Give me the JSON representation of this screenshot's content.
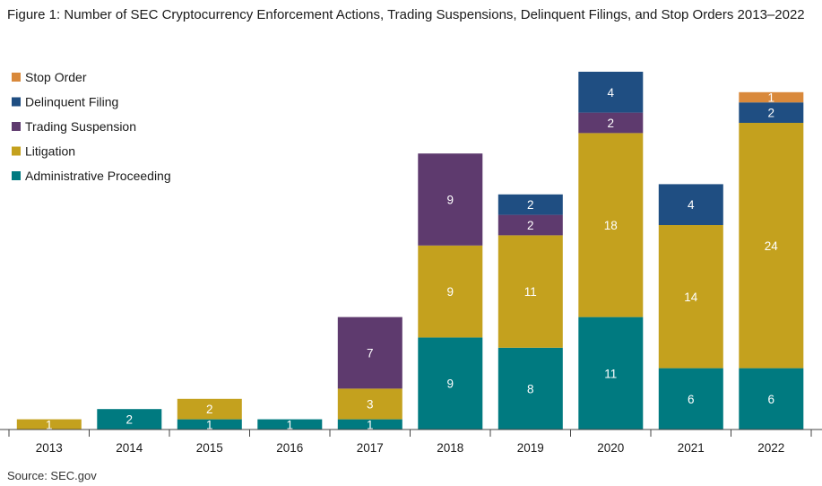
{
  "title": "Figure 1: Number of SEC Cryptocurrency Enforcement Actions, Trading Suspensions, Delinquent Filings, and Stop Orders 2013–2022",
  "source": "Source: SEC.gov",
  "chart_data": {
    "type": "bar",
    "stacked": true,
    "categories": [
      "2013",
      "2014",
      "2015",
      "2016",
      "2017",
      "2018",
      "2019",
      "2020",
      "2021",
      "2022"
    ],
    "series": [
      {
        "name": "Administrative Proceeding",
        "color": "#007a80",
        "values": [
          0,
          2,
          1,
          1,
          1,
          9,
          8,
          11,
          6,
          6
        ]
      },
      {
        "name": "Litigation",
        "color": "#c4a11e",
        "values": [
          1,
          0,
          2,
          0,
          3,
          9,
          11,
          18,
          14,
          24
        ]
      },
      {
        "name": "Trading Suspension",
        "color": "#5e3a6e",
        "values": [
          0,
          0,
          0,
          0,
          7,
          9,
          2,
          2,
          0,
          0
        ]
      },
      {
        "name": "Delinquent Filing",
        "color": "#1f4e82",
        "values": [
          0,
          0,
          0,
          0,
          0,
          0,
          2,
          4,
          4,
          2
        ]
      },
      {
        "name": "Stop Order",
        "color": "#d9893b",
        "values": [
          0,
          0,
          0,
          0,
          0,
          0,
          0,
          0,
          0,
          1
        ]
      }
    ],
    "legend_order": [
      "Stop Order",
      "Delinquent Filing",
      "Trading Suspension",
      "Litigation",
      "Administrative Proceeding"
    ],
    "legend_position": "top-left",
    "ylim": [
      0,
      35
    ],
    "grid": false,
    "xlabel": "",
    "ylabel": ""
  }
}
